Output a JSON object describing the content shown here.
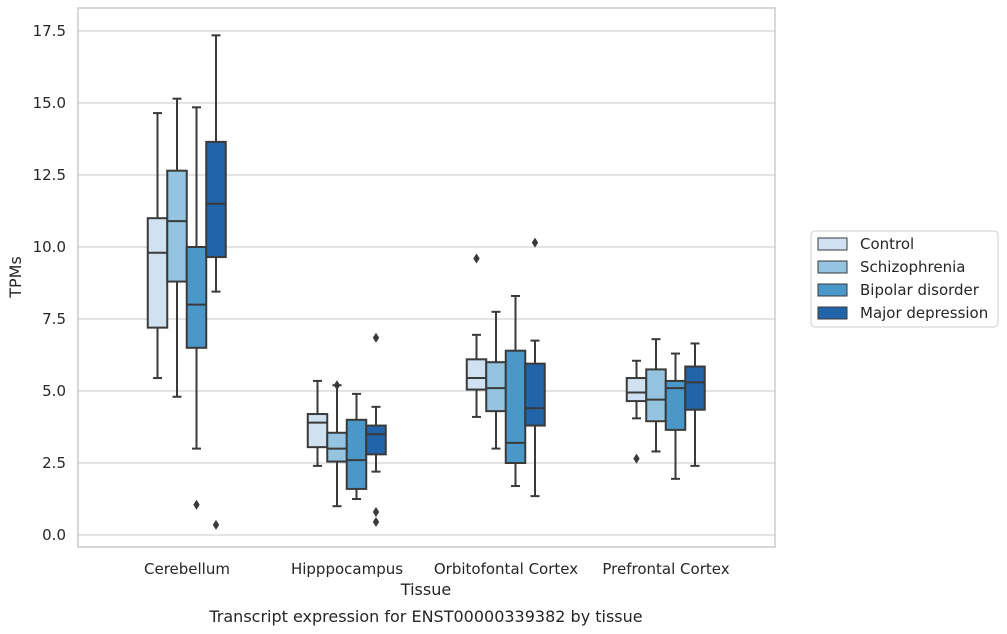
{
  "caption": "Transcript expression for ENST00000339382 by tissue",
  "chart_data": {
    "type": "box",
    "xlabel": "Tissue",
    "ylabel": "TPMs",
    "ylim": [
      -0.4,
      18.2
    ],
    "yticks": [
      0.0,
      2.5,
      5.0,
      7.5,
      10.0,
      12.5,
      15.0,
      17.5
    ],
    "ytick_labels": [
      "0.0",
      "2.5",
      "5.0",
      "7.5",
      "10.0",
      "12.5",
      "15.0",
      "17.5"
    ],
    "grid": "horizontal",
    "legend_position": "right",
    "categories": [
      "Cerebellum",
      "Hipppocampus",
      "Orbitofontal Cortex",
      "Prefrontal Cortex"
    ],
    "series": [
      {
        "name": "Control",
        "color": "#d0e1f2",
        "boxes": [
          {
            "whisker_low": 5.45,
            "q1": 7.2,
            "median": 9.8,
            "q3": 11.0,
            "whisker_high": 14.65,
            "outliers": []
          },
          {
            "whisker_low": 2.4,
            "q1": 3.05,
            "median": 3.9,
            "q3": 4.2,
            "whisker_high": 5.35,
            "outliers": []
          },
          {
            "whisker_low": 4.1,
            "q1": 5.05,
            "median": 5.45,
            "q3": 6.1,
            "whisker_high": 6.95,
            "outliers": [
              9.6
            ]
          },
          {
            "whisker_low": 4.05,
            "q1": 4.65,
            "median": 4.95,
            "q3": 5.45,
            "whisker_high": 6.05,
            "outliers": [
              2.65
            ]
          }
        ]
      },
      {
        "name": "Schizophrenia",
        "color": "#94c4df",
        "boxes": [
          {
            "whisker_low": 4.8,
            "q1": 8.8,
            "median": 10.9,
            "q3": 12.65,
            "whisker_high": 15.15,
            "outliers": []
          },
          {
            "whisker_low": 1.0,
            "q1": 2.55,
            "median": 3.0,
            "q3": 3.55,
            "whisker_high": 5.2,
            "outliers": [
              5.2
            ]
          },
          {
            "whisker_low": 3.0,
            "q1": 4.3,
            "median": 5.1,
            "q3": 6.0,
            "whisker_high": 7.75,
            "outliers": []
          },
          {
            "whisker_low": 2.9,
            "q1": 3.95,
            "median": 4.7,
            "q3": 5.75,
            "whisker_high": 6.8,
            "outliers": []
          }
        ]
      },
      {
        "name": "Bipolar disorder",
        "color": "#4a98c9",
        "boxes": [
          {
            "whisker_low": 3.0,
            "q1": 6.5,
            "median": 8.0,
            "q3": 10.0,
            "whisker_high": 14.85,
            "outliers": [
              1.05
            ]
          },
          {
            "whisker_low": 1.25,
            "q1": 1.6,
            "median": 2.6,
            "q3": 4.0,
            "whisker_high": 4.9,
            "outliers": []
          },
          {
            "whisker_low": 1.7,
            "q1": 2.5,
            "median": 3.2,
            "q3": 6.4,
            "whisker_high": 8.3,
            "outliers": []
          },
          {
            "whisker_low": 1.95,
            "q1": 3.65,
            "median": 5.1,
            "q3": 5.35,
            "whisker_high": 6.3,
            "outliers": []
          }
        ]
      },
      {
        "name": "Major depression",
        "color": "#2264a9",
        "boxes": [
          {
            "whisker_low": 8.45,
            "q1": 9.65,
            "median": 11.5,
            "q3": 13.65,
            "whisker_high": 17.35,
            "outliers": [
              0.35
            ]
          },
          {
            "whisker_low": 2.2,
            "q1": 2.8,
            "median": 3.5,
            "q3": 3.8,
            "whisker_high": 4.45,
            "outliers": [
              6.85,
              0.8,
              0.45
            ]
          },
          {
            "whisker_low": 1.35,
            "q1": 3.8,
            "median": 4.4,
            "q3": 5.95,
            "whisker_high": 6.75,
            "outliers": [
              10.15
            ]
          },
          {
            "whisker_low": 2.4,
            "q1": 4.35,
            "median": 5.3,
            "q3": 5.85,
            "whisker_high": 6.65,
            "outliers": []
          }
        ]
      }
    ]
  }
}
